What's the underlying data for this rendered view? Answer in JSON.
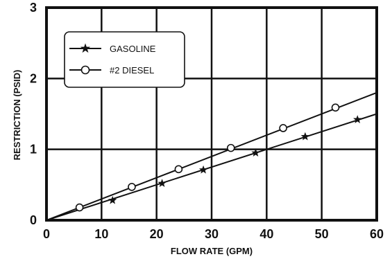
{
  "chart_data": {
    "type": "line",
    "title": "",
    "xlabel": "FLOW RATE (GPM)",
    "ylabel": "RESTRICTION (PSID)",
    "xlim": [
      0,
      60
    ],
    "ylim": [
      0,
      3
    ],
    "x_ticks": [
      0,
      10,
      20,
      30,
      40,
      50,
      60
    ],
    "y_ticks": [
      0,
      1,
      2,
      3
    ],
    "x_tick_labels": [
      "0",
      "10",
      "20",
      "30",
      "40",
      "50",
      "60"
    ],
    "y_tick_labels": [
      "0",
      "1",
      "2",
      "3"
    ],
    "grid": true,
    "legend_position": "top-left",
    "series": [
      {
        "name": "GASOLINE",
        "marker": "star",
        "line": {
          "x": [
            0,
            60
          ],
          "y": [
            0,
            1.5
          ]
        },
        "points": [
          {
            "x": 12,
            "y": 0.28
          },
          {
            "x": 21,
            "y": 0.52
          },
          {
            "x": 28.5,
            "y": 0.71
          },
          {
            "x": 38,
            "y": 0.95
          },
          {
            "x": 47,
            "y": 1.18
          },
          {
            "x": 56.5,
            "y": 1.42
          }
        ]
      },
      {
        "name": "#2 DIESEL",
        "marker": "open-circle",
        "line": {
          "x": [
            0,
            60
          ],
          "y": [
            0,
            1.8
          ]
        },
        "points": [
          {
            "x": 6,
            "y": 0.18
          },
          {
            "x": 15.5,
            "y": 0.47
          },
          {
            "x": 24,
            "y": 0.72
          },
          {
            "x": 33.5,
            "y": 1.02
          },
          {
            "x": 43,
            "y": 1.3
          },
          {
            "x": 52.5,
            "y": 1.59
          }
        ]
      }
    ],
    "colors": {
      "line": "#111111",
      "grid": "#111111",
      "marker_fill_open": "#ffffff"
    }
  }
}
